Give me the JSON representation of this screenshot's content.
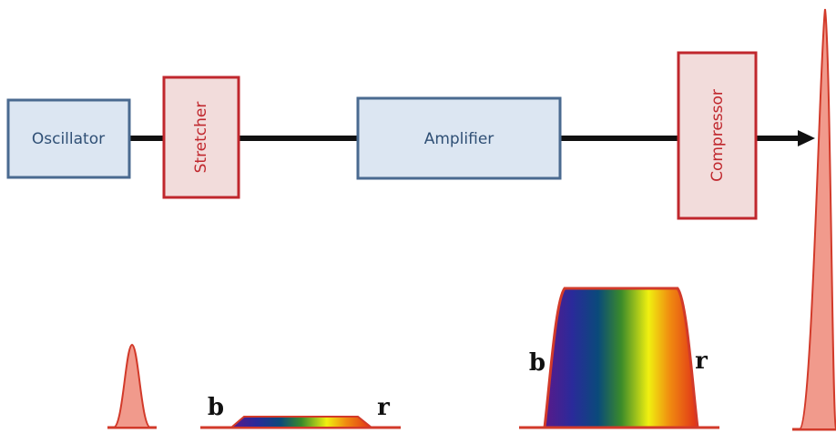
{
  "nodes": [
    {
      "label": "Oscillator"
    },
    {
      "label": "Stretcher"
    },
    {
      "label": "Amplifier"
    },
    {
      "label": "Compressor"
    }
  ],
  "pulses": [
    {
      "blue_label": "b",
      "red_label": "r"
    },
    {
      "blue_label": "b",
      "red_label": "r"
    }
  ]
}
